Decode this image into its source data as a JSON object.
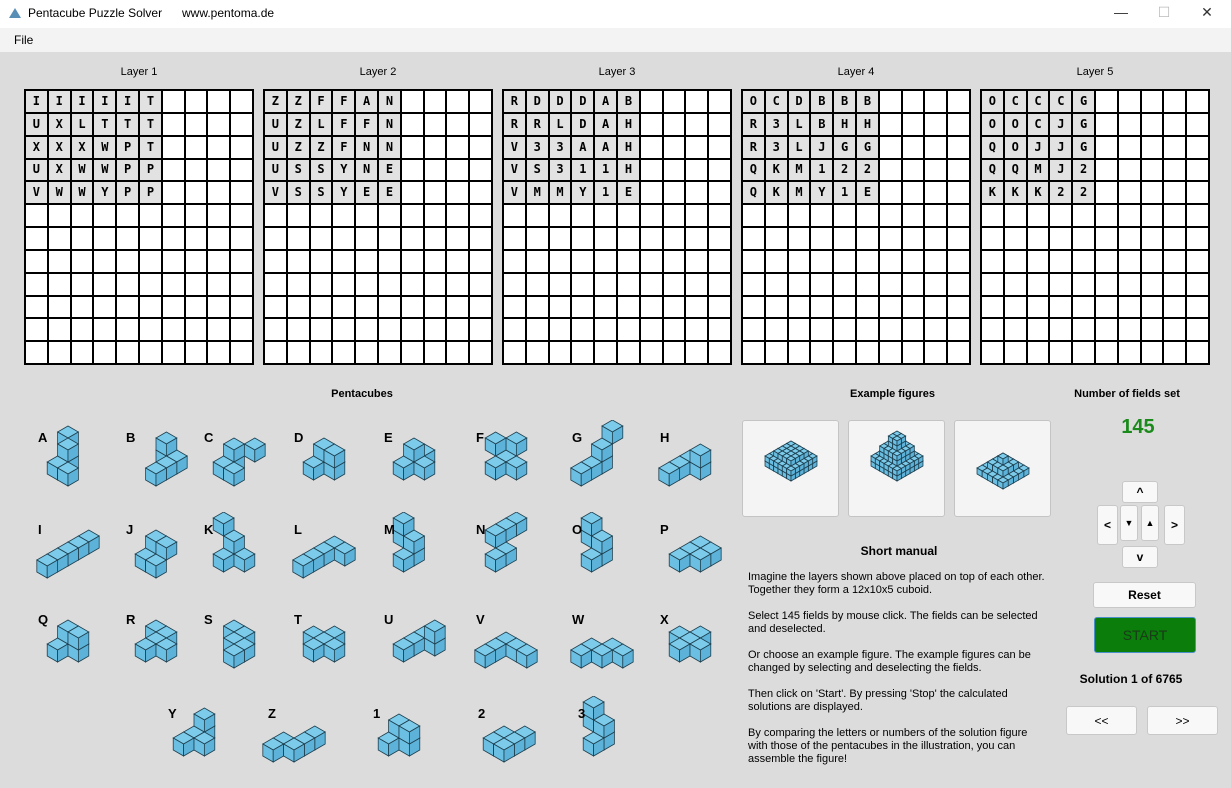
{
  "window": {
    "title": "Pentacube Puzzle Solver",
    "url": "www.pentoma.de",
    "minimize": "—",
    "maximize": "☐",
    "close": "✕"
  },
  "menu": {
    "file": "File"
  },
  "layers": [
    {
      "label": "Layer 1",
      "rows": [
        "IIIIIT",
        "UXLTTT",
        "XXXWPT",
        "UXWWPP",
        "VWWYPP"
      ]
    },
    {
      "label": "Layer 2",
      "rows": [
        "ZZFFAN",
        "UZLFFN",
        "UZZFNN",
        "USSYNE",
        "VSSYEE"
      ]
    },
    {
      "label": "Layer 3",
      "rows": [
        "RDDDAB",
        "RRLDAH",
        "V33AAH",
        "VS311H",
        "VMMY1E"
      ]
    },
    {
      "label": "Layer 4",
      "rows": [
        "OCDBBB",
        "R3LBHH",
        "R3LJGG",
        "QKM122",
        "QKMY1E"
      ]
    },
    {
      "label": "Layer 5",
      "rows": [
        "OCCCG",
        "OOCJG",
        "QOJJG",
        "QQMJ2",
        "KKK22"
      ]
    }
  ],
  "pentacubes": {
    "title": "Pentacubes",
    "labels": [
      "A",
      "B",
      "C",
      "D",
      "E",
      "F",
      "G",
      "H",
      "I",
      "J",
      "K",
      "L",
      "M",
      "N",
      "O",
      "P",
      "Q",
      "R",
      "S",
      "T",
      "U",
      "V",
      "W",
      "X",
      "Y",
      "Z",
      "1",
      "2",
      "3"
    ]
  },
  "examples": {
    "title": "Example figures"
  },
  "manual": {
    "title": "Short manual",
    "paragraphs": [
      "Imagine the layers shown above placed on top of each other. Together they form a 12x10x5 cuboid.",
      "Select 145 fields by mouse click. The fields can be selected and deselected.",
      "Or choose an example figure. The example figures can be changed by selecting and deselecting the fields.",
      "Then click on 'Start'. By pressing 'Stop' the calculated solutions are displayed.",
      "By comparing the letters or numbers of the solution figure with those of the pentacubes in the illustration, you can assemble the figure!"
    ]
  },
  "controls": {
    "fields_label": "Number of fields set",
    "fields_count": "145",
    "fields_color": "#1a8a1a",
    "up": "^",
    "left": "<",
    "down_layer": "▼",
    "up_layer": "▲",
    "right": ">",
    "down": "v",
    "reset": "Reset",
    "start": "START",
    "start_color": "#0a7d0a",
    "solution": "Solution 1 of 6765",
    "prev": "<<",
    "next": ">>"
  },
  "colors": {
    "cube": "#7ccbea"
  }
}
